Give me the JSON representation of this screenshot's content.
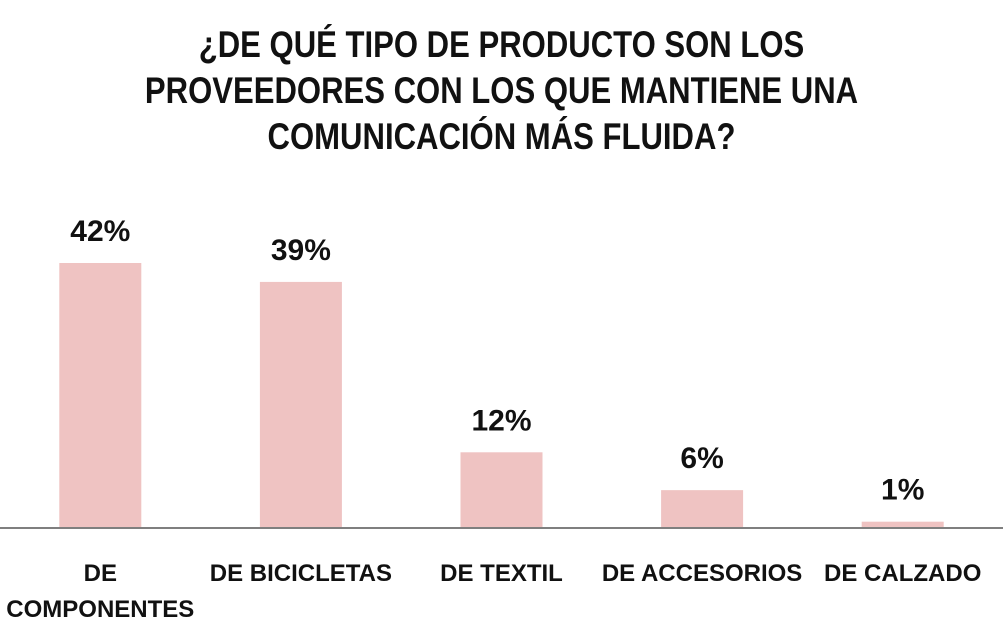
{
  "chart_data": {
    "type": "bar",
    "title": "¿DE QUÉ TIPO DE PRODUCTO SON LOS PROVEEDORES CON LOS QUE MANTIENE UNA COMUNICACIÓN MÁS FLUIDA?",
    "categories": [
      "DE COMPONENTES",
      "DE BICICLETAS",
      "DE TEXTIL",
      "DE ACCESORIOS",
      "DE CALZADO"
    ],
    "category_lines": [
      [
        "DE",
        "COMPONENTES"
      ],
      [
        "DE BICICLETAS"
      ],
      [
        "DE TEXTIL"
      ],
      [
        "DE ACCESORIOS"
      ],
      [
        "DE CALZADO"
      ]
    ],
    "values": [
      42,
      39,
      12,
      6,
      1
    ],
    "data_labels": [
      "42%",
      "39%",
      "12%",
      "6%",
      "1%"
    ],
    "ylim": [
      0,
      42
    ],
    "grid": false,
    "legend": "none",
    "bar_color": "#efc3c2",
    "axis_color": "#7f7f7f"
  }
}
